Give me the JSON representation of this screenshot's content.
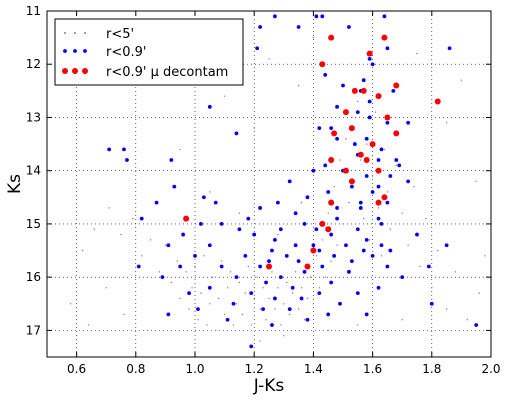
{
  "chart_data": {
    "type": "scatter",
    "title": "",
    "xlabel": "J-Ks",
    "ylabel": "Ks",
    "xlim": [
      0.5,
      2.0
    ],
    "ylim": [
      17.5,
      11.0
    ],
    "y_inverted": true,
    "x_ticks": [
      0.6,
      0.8,
      1.0,
      1.2,
      1.4,
      1.6,
      1.8,
      2.0
    ],
    "x_tick_labels": [
      "0.6",
      "0.8",
      "1.0",
      "1.2",
      "1.4",
      "1.6",
      "1.8",
      "2.0"
    ],
    "y_ticks": [
      11,
      12,
      13,
      14,
      15,
      16,
      17
    ],
    "y_tick_labels": [
      "11",
      "12",
      "13",
      "14",
      "15",
      "16",
      "17"
    ],
    "grid": true,
    "legend_position": "top-left",
    "series": [
      {
        "name": "r<5'",
        "color": "#7f7f7f",
        "marker": "tiny-dot",
        "points": [
          [
            0.62,
            15.5
          ],
          [
            0.66,
            15.1
          ],
          [
            0.71,
            14.7
          ],
          [
            0.75,
            15.2
          ],
          [
            0.79,
            14.9
          ],
          [
            0.82,
            15.6
          ],
          [
            0.85,
            15.3
          ],
          [
            0.88,
            15.9
          ],
          [
            0.9,
            15.4
          ],
          [
            0.92,
            16.1
          ],
          [
            0.94,
            15.7
          ],
          [
            0.95,
            16.4
          ],
          [
            0.97,
            15.9
          ],
          [
            0.98,
            16.6
          ],
          [
            0.99,
            16.2
          ],
          [
            1.0,
            15.8
          ],
          [
            1.01,
            16.8
          ],
          [
            1.02,
            16.3
          ],
          [
            1.03,
            15.6
          ],
          [
            1.04,
            16.9
          ],
          [
            1.05,
            16.5
          ],
          [
            1.06,
            16.0
          ],
          [
            1.07,
            17.0
          ],
          [
            1.08,
            16.4
          ],
          [
            1.09,
            15.7
          ],
          [
            1.1,
            16.7
          ],
          [
            1.11,
            16.2
          ],
          [
            1.12,
            15.9
          ],
          [
            1.13,
            16.9
          ],
          [
            1.14,
            16.5
          ],
          [
            1.15,
            16.1
          ],
          [
            1.16,
            16.7
          ],
          [
            1.17,
            16.3
          ],
          [
            1.18,
            15.8
          ],
          [
            1.19,
            16.9
          ],
          [
            1.2,
            16.4
          ],
          [
            1.21,
            16.0
          ],
          [
            1.22,
            16.6
          ],
          [
            1.23,
            16.2
          ],
          [
            1.24,
            16.8
          ],
          [
            1.25,
            16.4
          ],
          [
            1.26,
            15.9
          ],
          [
            1.27,
            16.6
          ],
          [
            1.28,
            16.2
          ],
          [
            1.29,
            16.9
          ],
          [
            1.3,
            16.5
          ],
          [
            1.31,
            16.1
          ],
          [
            1.32,
            16.7
          ],
          [
            1.33,
            16.3
          ],
          [
            1.34,
            15.9
          ],
          [
            1.35,
            16.6
          ],
          [
            1.36,
            16.2
          ],
          [
            1.37,
            16.8
          ],
          [
            1.38,
            16.4
          ],
          [
            1.39,
            16.0
          ],
          [
            1.4,
            16.5
          ],
          [
            1.41,
            15.6
          ],
          [
            1.42,
            16.2
          ],
          [
            1.43,
            15.3
          ],
          [
            1.44,
            16.0
          ],
          [
            1.45,
            14.8
          ],
          [
            1.46,
            15.7
          ],
          [
            1.47,
            14.3
          ],
          [
            1.48,
            15.4
          ],
          [
            1.49,
            13.8
          ],
          [
            1.5,
            15.0
          ],
          [
            1.51,
            13.4
          ],
          [
            1.52,
            14.6
          ],
          [
            1.53,
            13.0
          ],
          [
            1.54,
            14.2
          ],
          [
            1.55,
            12.7
          ],
          [
            1.56,
            13.8
          ],
          [
            1.57,
            14.9
          ],
          [
            1.58,
            13.5
          ],
          [
            1.59,
            15.3
          ],
          [
            1.6,
            14.1
          ],
          [
            1.61,
            12.9
          ],
          [
            1.62,
            14.7
          ],
          [
            1.63,
            15.6
          ],
          [
            1.64,
            13.6
          ],
          [
            1.65,
            14.4
          ],
          [
            1.66,
            15.1
          ],
          [
            1.68,
            13.9
          ],
          [
            1.7,
            14.8
          ],
          [
            1.72,
            15.4
          ],
          [
            1.74,
            14.3
          ],
          [
            1.76,
            15.8
          ],
          [
            1.78,
            14.9
          ],
          [
            1.8,
            16.2
          ],
          [
            1.82,
            15.5
          ],
          [
            1.85,
            16.6
          ],
          [
            1.88,
            15.9
          ],
          [
            1.92,
            16.8
          ],
          [
            1.96,
            16.3
          ],
          [
            0.58,
            16.5
          ],
          [
            0.64,
            16.9
          ],
          [
            0.7,
            16.2
          ],
          [
            0.76,
            16.7
          ],
          [
            0.84,
            17.0
          ],
          [
            1.22,
            17.2
          ],
          [
            1.3,
            17.1
          ],
          [
            1.45,
            17.0
          ],
          [
            1.55,
            16.9
          ],
          [
            1.7,
            16.8
          ],
          [
            1.35,
            12.4
          ],
          [
            1.25,
            11.9
          ],
          [
            1.1,
            12.6
          ],
          [
            1.4,
            11.5
          ],
          [
            1.75,
            11.8
          ],
          [
            1.9,
            12.3
          ],
          [
            1.2,
            13.2
          ],
          [
            0.95,
            13.6
          ],
          [
            0.8,
            14.0
          ],
          [
            1.85,
            13.1
          ],
          [
            1.95,
            14.2
          ],
          [
            1.05,
            14.4
          ],
          [
            1.15,
            14.8
          ],
          [
            1.28,
            15.2
          ],
          [
            1.36,
            14.6
          ],
          [
            1.98,
            15.6
          ]
        ]
      },
      {
        "name": "r<0.9'",
        "color": "#0000ff",
        "marker": "small-dot",
        "points": [
          [
            1.27,
            11.1
          ],
          [
            1.41,
            11.1
          ],
          [
            1.43,
            11.1
          ],
          [
            1.64,
            11.1
          ],
          [
            1.22,
            11.3
          ],
          [
            1.52,
            11.3
          ],
          [
            1.35,
            11.3
          ],
          [
            1.21,
            11.7
          ],
          [
            1.65,
            11.7
          ],
          [
            1.86,
            11.7
          ],
          [
            1.13,
            11.9
          ],
          [
            1.59,
            11.9
          ],
          [
            1.6,
            12.0
          ],
          [
            1.44,
            12.2
          ],
          [
            1.57,
            12.3
          ],
          [
            1.5,
            12.4
          ],
          [
            1.56,
            12.5
          ],
          [
            1.67,
            12.5
          ],
          [
            1.59,
            12.7
          ],
          [
            1.48,
            12.8
          ],
          [
            1.05,
            12.8
          ],
          [
            1.55,
            12.9
          ],
          [
            1.59,
            13.0
          ],
          [
            1.65,
            13.1
          ],
          [
            1.42,
            13.2
          ],
          [
            1.46,
            13.2
          ],
          [
            1.14,
            13.3
          ],
          [
            1.72,
            13.1
          ],
          [
            1.58,
            13.4
          ],
          [
            1.48,
            13.4
          ],
          [
            1.54,
            13.5
          ],
          [
            1.63,
            13.6
          ],
          [
            0.71,
            13.6
          ],
          [
            0.76,
            13.6
          ],
          [
            1.55,
            13.7
          ],
          [
            1.62,
            13.8
          ],
          [
            1.68,
            13.8
          ],
          [
            1.44,
            13.9
          ],
          [
            1.69,
            13.9
          ],
          [
            0.77,
            13.8
          ],
          [
            0.92,
            13.8
          ],
          [
            1.5,
            14.0
          ],
          [
            1.4,
            14.0
          ],
          [
            1.58,
            14.1
          ],
          [
            1.66,
            14.1
          ],
          [
            1.32,
            14.2
          ],
          [
            1.53,
            14.3
          ],
          [
            0.93,
            14.3
          ],
          [
            1.62,
            14.3
          ],
          [
            1.72,
            14.2
          ],
          [
            1.45,
            14.4
          ],
          [
            1.6,
            14.4
          ],
          [
            1.03,
            14.5
          ],
          [
            1.56,
            14.6
          ],
          [
            1.38,
            14.5
          ],
          [
            1.07,
            14.6
          ],
          [
            1.28,
            14.6
          ],
          [
            1.65,
            14.6
          ],
          [
            0.87,
            14.6
          ],
          [
            1.48,
            14.7
          ],
          [
            1.22,
            14.7
          ],
          [
            1.56,
            14.7
          ],
          [
            0.82,
            14.9
          ],
          [
            1.34,
            14.8
          ],
          [
            1.18,
            14.9
          ],
          [
            1.62,
            14.9
          ],
          [
            1.48,
            14.9
          ],
          [
            1.02,
            15.0
          ],
          [
            1.09,
            15.0
          ],
          [
            1.37,
            15.0
          ],
          [
            1.63,
            15.0
          ],
          [
            1.15,
            15.1
          ],
          [
            1.29,
            15.1
          ],
          [
            1.41,
            15.1
          ],
          [
            1.55,
            15.1
          ],
          [
            0.96,
            15.2
          ],
          [
            1.2,
            15.2
          ],
          [
            1.46,
            15.2
          ],
          [
            1.27,
            15.3
          ],
          [
            1.58,
            15.3
          ],
          [
            0.91,
            15.4
          ],
          [
            1.05,
            15.4
          ],
          [
            1.34,
            15.4
          ],
          [
            1.4,
            15.4
          ],
          [
            1.51,
            15.4
          ],
          [
            1.63,
            15.4
          ],
          [
            1.26,
            15.5
          ],
          [
            1.42,
            15.5
          ],
          [
            1.57,
            15.5
          ],
          [
            1.0,
            15.6
          ],
          [
            1.17,
            15.6
          ],
          [
            1.31,
            15.6
          ],
          [
            1.47,
            15.6
          ],
          [
            1.6,
            15.6
          ],
          [
            1.25,
            15.7
          ],
          [
            1.35,
            15.7
          ],
          [
            1.53,
            15.7
          ],
          [
            0.95,
            15.8
          ],
          [
            1.09,
            15.8
          ],
          [
            1.22,
            15.8
          ],
          [
            1.43,
            15.8
          ],
          [
            1.65,
            15.8
          ],
          [
            0.81,
            15.8
          ],
          [
            1.79,
            15.8
          ],
          [
            1.37,
            15.9
          ],
          [
            1.52,
            15.9
          ],
          [
            0.89,
            16.0
          ],
          [
            1.14,
            16.0
          ],
          [
            1.29,
            16.0
          ],
          [
            1.7,
            16.0
          ],
          [
            1.24,
            16.1
          ],
          [
            1.46,
            16.1
          ],
          [
            1.05,
            16.2
          ],
          [
            1.33,
            16.2
          ],
          [
            1.62,
            16.2
          ],
          [
            0.98,
            16.3
          ],
          [
            1.19,
            16.3
          ],
          [
            1.42,
            16.3
          ],
          [
            1.55,
            16.3
          ],
          [
            1.27,
            16.4
          ],
          [
            1.36,
            16.4
          ],
          [
            1.13,
            16.5
          ],
          [
            1.49,
            16.5
          ],
          [
            1.01,
            16.6
          ],
          [
            1.23,
            16.6
          ],
          [
            1.32,
            16.6
          ],
          [
            1.45,
            16.7
          ],
          [
            0.91,
            16.7
          ],
          [
            1.8,
            16.5
          ],
          [
            1.11,
            16.8
          ],
          [
            1.38,
            16.8
          ],
          [
            1.26,
            16.9
          ],
          [
            1.95,
            16.9
          ],
          [
            1.19,
            17.3
          ],
          [
            1.58,
            16.7
          ],
          [
            1.85,
            15.4
          ],
          [
            1.75,
            15.2
          ],
          [
            1.66,
            15.5
          ]
        ]
      },
      {
        "name": "r<0.9' μ decontam",
        "color": "#ff0000",
        "marker": "dot",
        "points": [
          [
            1.46,
            11.5
          ],
          [
            1.64,
            11.5
          ],
          [
            1.59,
            11.8
          ],
          [
            1.43,
            12.0
          ],
          [
            1.54,
            12.5
          ],
          [
            1.68,
            12.4
          ],
          [
            1.57,
            12.5
          ],
          [
            1.62,
            12.6
          ],
          [
            1.82,
            12.7
          ],
          [
            1.51,
            12.9
          ],
          [
            1.65,
            13.0
          ],
          [
            1.53,
            13.2
          ],
          [
            1.47,
            13.3
          ],
          [
            1.68,
            13.3
          ],
          [
            1.6,
            13.5
          ],
          [
            1.56,
            13.7
          ],
          [
            1.46,
            13.8
          ],
          [
            1.58,
            13.8
          ],
          [
            1.51,
            14.0
          ],
          [
            1.62,
            14.0
          ],
          [
            1.53,
            14.2
          ],
          [
            1.46,
            14.6
          ],
          [
            1.62,
            14.6
          ],
          [
            1.64,
            14.5
          ],
          [
            0.97,
            14.9
          ],
          [
            1.43,
            15.0
          ],
          [
            1.45,
            15.1
          ],
          [
            1.4,
            15.5
          ],
          [
            1.25,
            15.8
          ],
          [
            1.38,
            15.8
          ]
        ]
      }
    ]
  }
}
